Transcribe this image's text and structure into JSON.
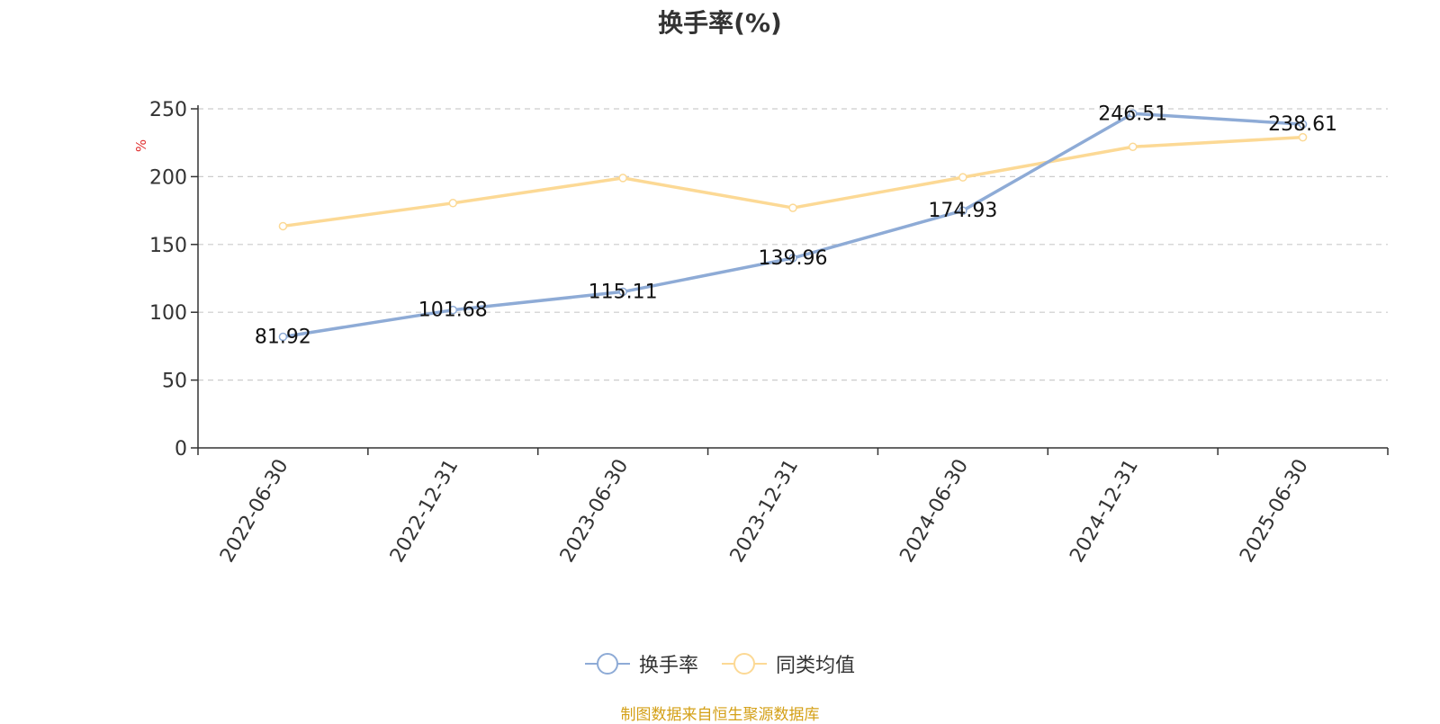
{
  "chart_data": {
    "type": "line",
    "title": "换手率(%)",
    "ylabel": "%",
    "xlabel": "",
    "categories": [
      "2022-06-30",
      "2022-12-31",
      "2023-06-30",
      "2023-12-31",
      "2024-06-30",
      "2024-12-31",
      "2025-06-30"
    ],
    "ylim": [
      0,
      250
    ],
    "yticks": [
      "0",
      "50",
      "100",
      "150",
      "200",
      "250"
    ],
    "grid": true,
    "legend_position": "bottom",
    "series": [
      {
        "name": "换手率",
        "color": "#8eabd6",
        "values": [
          81.92,
          101.68,
          115.11,
          139.96,
          174.93,
          246.51,
          238.61
        ],
        "labels": [
          "81.92",
          "101.68",
          "115.11",
          "139.96",
          "174.93",
          "246.51",
          "238.61"
        ]
      },
      {
        "name": "同类均值",
        "color": "#fcd995",
        "values": [
          163.5,
          180.5,
          199.0,
          177.0,
          199.5,
          222.0,
          229.0
        ]
      }
    ]
  },
  "source": "制图数据来自恒生聚源数据库"
}
